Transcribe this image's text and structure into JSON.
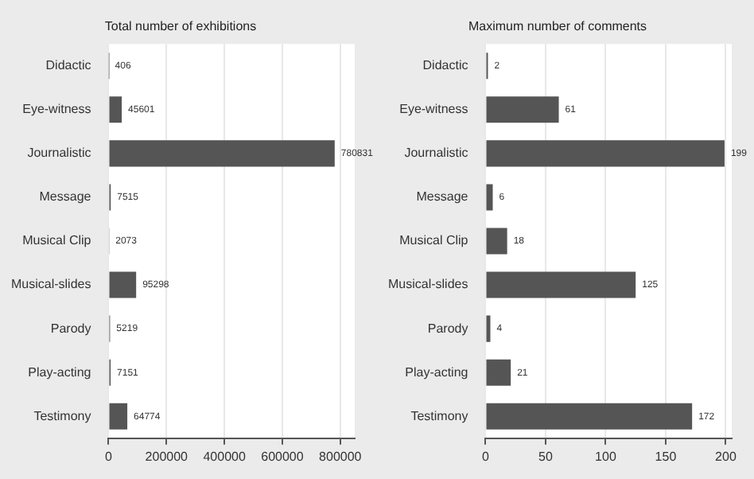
{
  "chart_data": [
    {
      "type": "bar",
      "orientation": "horizontal",
      "title": "Total number of exhibitions",
      "categories": [
        "Didactic",
        "Eye-witness",
        "Journalistic",
        "Message",
        "Musical Clip",
        "Musical-slides",
        "Parody",
        "Play-acting",
        "Testimony"
      ],
      "values": [
        406,
        45601,
        780831,
        7515,
        2073,
        95298,
        5219,
        7151,
        64774
      ],
      "color": "#555555",
      "xlim": [
        0,
        850000
      ],
      "xticks": [
        0,
        200000,
        400000,
        600000,
        800000
      ],
      "grid": "x",
      "data_labels": true
    },
    {
      "type": "bar",
      "orientation": "horizontal",
      "title": "Maximum number of comments",
      "categories": [
        "Didactic",
        "Eye-witness",
        "Journalistic",
        "Message",
        "Musical Clip",
        "Musical-slides",
        "Parody",
        "Play-acting",
        "Testimony"
      ],
      "values": [
        2,
        61,
        199,
        6,
        18,
        125,
        4,
        21,
        172
      ],
      "color": "#555555",
      "xlim": [
        0,
        205
      ],
      "xticks": [
        0,
        50,
        100,
        150,
        200
      ],
      "grid": "x",
      "data_labels": true
    }
  ]
}
